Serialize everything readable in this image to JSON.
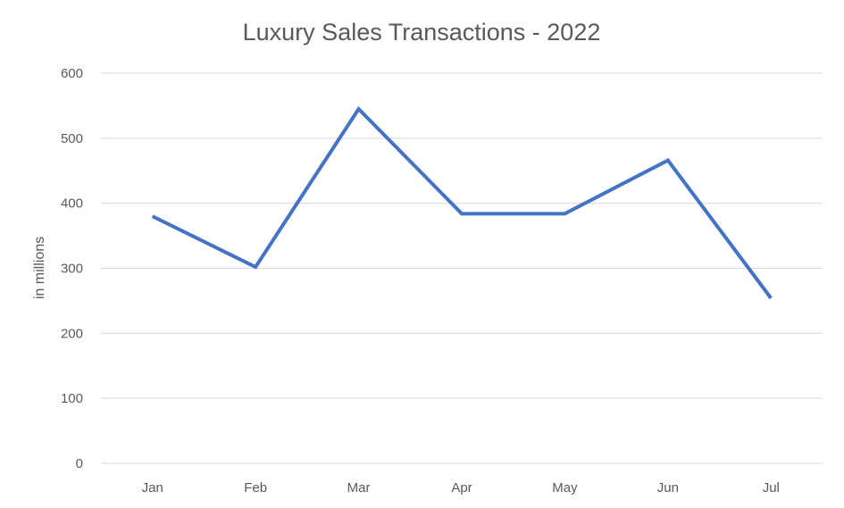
{
  "chart_data": {
    "type": "line",
    "title": "Luxury Sales Transactions - 2022",
    "xlabel": "",
    "ylabel": "in millions",
    "categories": [
      "Jan",
      "Feb",
      "Mar",
      "Apr",
      "May",
      "Jun",
      "Jul"
    ],
    "series": [
      {
        "values": [
          380,
          302,
          545,
          384,
          384,
          466,
          254
        ]
      }
    ],
    "ylim": [
      0,
      600
    ],
    "yticks": [
      0,
      100,
      200,
      300,
      400,
      500,
      600
    ],
    "grid": true,
    "legend": "none",
    "colors": {
      "line": "#4472c4",
      "grid": "#d9d9d9",
      "text": "#595959"
    }
  }
}
